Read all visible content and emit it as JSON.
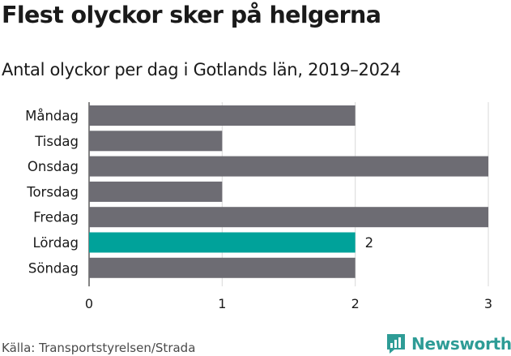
{
  "title": "Flest olyckor sker på helgerna",
  "subtitle": "Antal olyckor per dag i Gotlands län, 2019–2024",
  "source": "Källa: Transportstyrelsen/Strada",
  "brand": {
    "name": "Newsworthy",
    "icon": "newsworthy-logo-icon"
  },
  "colors": {
    "bar": "#6d6c73",
    "highlight": "#00a29a",
    "grid": "#d9d9d9"
  },
  "chart_data": {
    "type": "bar",
    "orientation": "horizontal",
    "categories": [
      "Måndag",
      "Tisdag",
      "Onsdag",
      "Torsdag",
      "Fredag",
      "Lördag",
      "Söndag"
    ],
    "values": [
      2,
      1,
      3,
      1,
      3,
      2,
      2
    ],
    "highlight_index": 5,
    "data_labels": [
      {
        "index": 5,
        "text": "2"
      }
    ],
    "xlim": [
      0,
      3
    ],
    "xticks": [
      0,
      1,
      2,
      3
    ],
    "xtick_labels": [
      "0",
      "1",
      "2",
      "3"
    ],
    "grid": true
  }
}
